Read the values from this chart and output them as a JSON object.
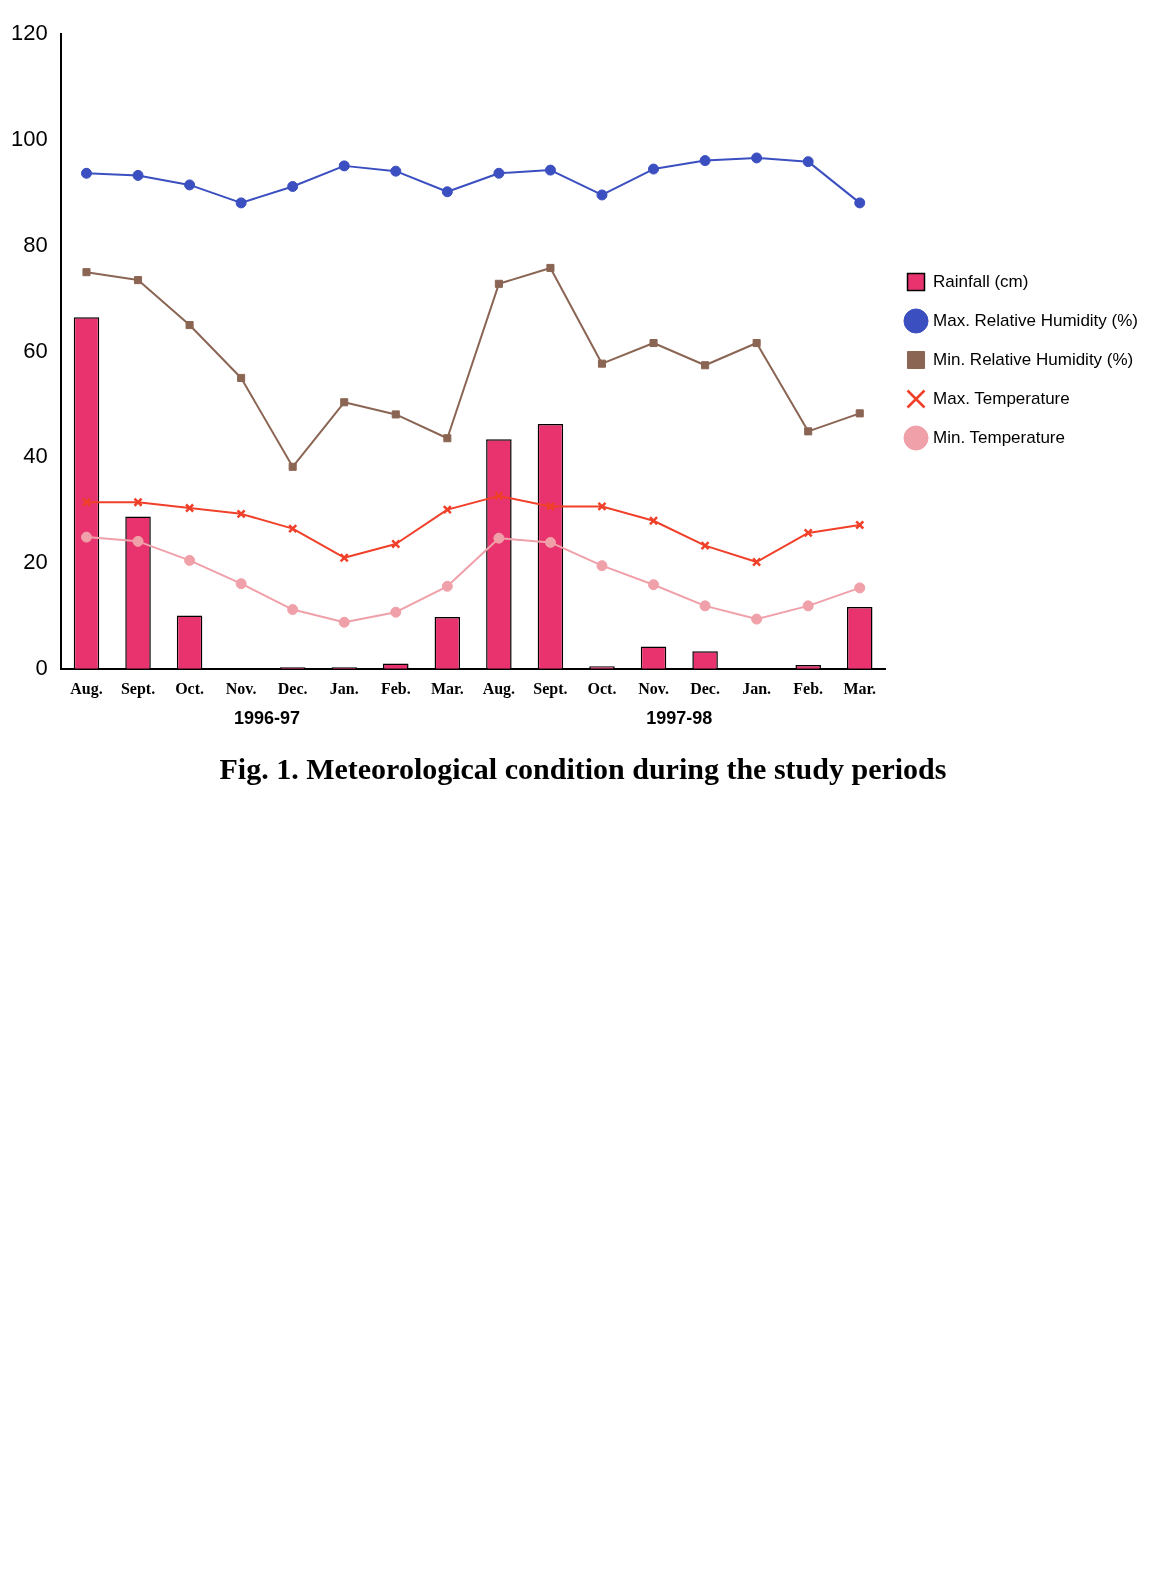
{
  "chart_data": {
    "type": "bar",
    "title": "Fig. 1. Meteorological condition during the study periods",
    "categories": [
      "Aug.",
      "Sept.",
      "Oct.",
      "Nov.",
      "Dec.",
      "Jan.",
      "Feb.",
      "Mar.",
      "Aug.",
      "Sept.",
      "Oct.",
      "Nov.",
      "Dec.",
      "Jan.",
      "Feb.",
      "Mar."
    ],
    "series": [
      {
        "name": "Rainfall (cm)",
        "color": "#e8336f",
        "values": [
          66.5,
          28.8,
          10.1,
          0,
          0.3,
          0.3,
          1.0,
          9.8,
          43.4,
          46.3,
          0.5,
          4.2,
          3.3,
          0,
          0.7,
          11.7
        ]
      },
      {
        "name": "Max. Relative Humidity (%)",
        "type": "line",
        "color": "#3b4fc0",
        "marker": "circle",
        "values": [
          93.7,
          93.3,
          91.5,
          88.1,
          91.2,
          95.1,
          94.1,
          90.2,
          93.7,
          94.3,
          89.6,
          94.5,
          96.1,
          96.6,
          95.9,
          88.1
        ]
      },
      {
        "name": "Min. Relative Humidity (%)",
        "type": "line",
        "color": "#8b6553",
        "marker": "square",
        "values": [
          75.0,
          73.5,
          65.0,
          55.0,
          38.2,
          50.4,
          48.1,
          43.6,
          72.8,
          75.8,
          57.7,
          61.6,
          57.4,
          61.6,
          44.9,
          48.3
        ]
      },
      {
        "name": "Max. Temperature",
        "type": "line",
        "color": "#f0402a",
        "marker": "cross",
        "values": [
          31.5,
          31.5,
          30.4,
          29.3,
          26.5,
          21.0,
          23.6,
          30.1,
          32.7,
          30.7,
          30.7,
          28.0,
          23.3,
          20.2,
          25.7,
          27.2
        ]
      },
      {
        "name": "Min. Temperature",
        "type": "line",
        "color": "#f0a0a8",
        "marker": "circle",
        "values": [
          24.9,
          24.1,
          20.5,
          16.1,
          11.2,
          8.8,
          10.7,
          15.6,
          24.7,
          23.9,
          19.5,
          15.9,
          11.9,
          9.4,
          11.9,
          15.3
        ]
      }
    ],
    "annotations": [
      "1996-97",
      "1997-98"
    ],
    "ylim": [
      0,
      120
    ],
    "yticks": [
      0,
      20,
      40,
      60,
      80,
      100,
      120
    ],
    "grid": false,
    "legend": "right"
  }
}
